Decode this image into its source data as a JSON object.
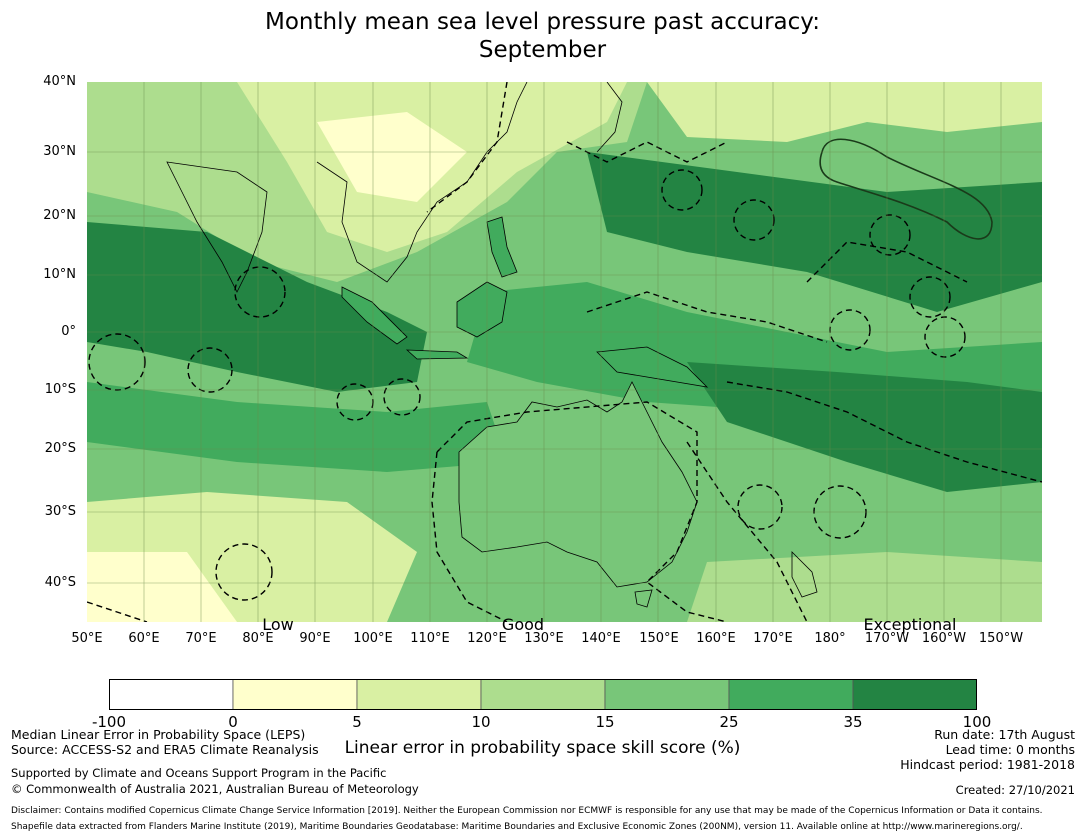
{
  "title_line1": "Monthly mean sea level pressure past accuracy:",
  "title_line2": "September",
  "lat_labels": [
    "40°N",
    "30°N",
    "20°N",
    "10°N",
    "0°",
    "10°S",
    "20°S",
    "30°S",
    "40°S"
  ],
  "lon_labels": [
    "50°E",
    "60°E",
    "70°E",
    "80°E",
    "90°E",
    "100°E",
    "110°E",
    "120°E",
    "130°E",
    "140°E",
    "150°E",
    "160°E",
    "170°E",
    "180°",
    "170°W",
    "160°W",
    "150°W"
  ],
  "category_labels": {
    "low": "Low",
    "good": "Good",
    "exceptional": "Exceptional"
  },
  "colorbar": {
    "ticks": [
      "-100",
      "0",
      "5",
      "10",
      "15",
      "25",
      "35",
      "100"
    ],
    "colors": [
      "#ffffff",
      "#ffffcc",
      "#d9f0a3",
      "#addd8e",
      "#78c679",
      "#41ab5d",
      "#238443"
    ],
    "label": "Linear error in probability space skill score (%)"
  },
  "colors": {
    "land_outline": "#000000",
    "gridline": "#6a8a4a"
  },
  "footer_left": {
    "line1": "Median Linear Error in Probability Space (LEPS)",
    "line2": "Source: ACCESS-S2 and ERA5 Climate Reanalysis",
    "line3": "Supported by Climate and Oceans Support Program in the Pacific",
    "line4": "© Commonwealth of Australia 2021, Australian Bureau of Meteorology"
  },
  "footer_right": {
    "run_date": "Run date: 17th August",
    "lead_time": "Lead time: 0 months",
    "hindcast": "Hindcast period: 1981-2018",
    "created": "Created: 27/10/2021"
  },
  "disclaimer1": "Disclaimer: Contains modified Copernicus Climate Change Service Information [2019]. Neither the European Commission nor ECMWF is responsible for any use that may be made of the Copernicus Information or Data it contains.",
  "disclaimer2": "Shapefile data extracted from Flanders Marine Institute (2019), Maritime Boundaries Geodatabase: Maritime Boundaries and Exclusive Economic Zones (200NM), version 11. Available online at http://www.marineregions.org/."
}
